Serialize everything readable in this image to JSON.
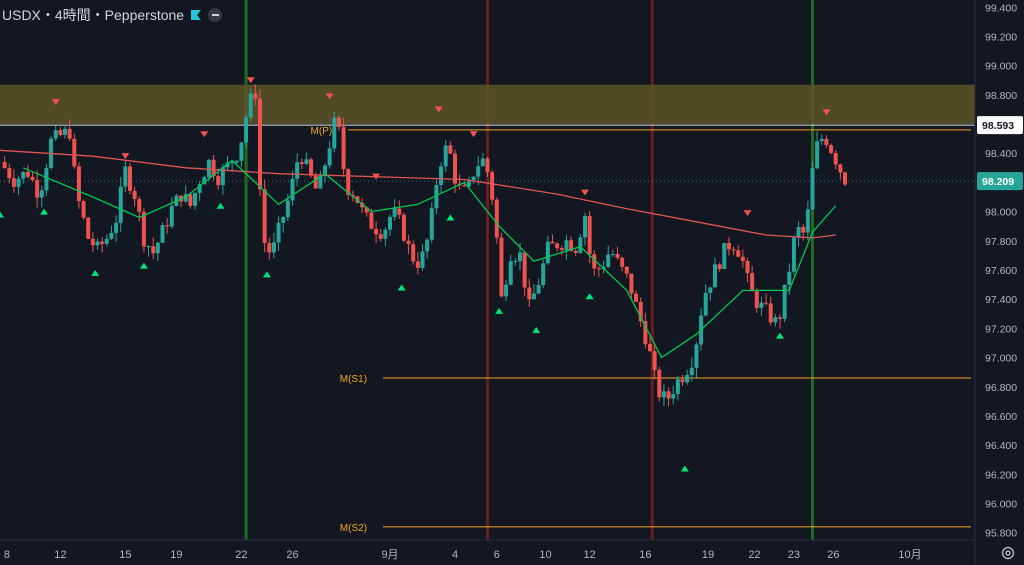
{
  "header": {
    "title": "USDX・4時間・Pepperstone",
    "flag_icon": "flag-icon",
    "collapse_icon": "minus-icon"
  },
  "colors": {
    "background": "#131722",
    "bull": "#26a69a",
    "bear": "#ef5350",
    "ma_slow": "#e05555",
    "ma_fast": "#00c853",
    "zone": "#5c5427",
    "pivot": "#f5a623",
    "green_vline": "#1f7a1f",
    "red_vline": "#7a1f1f",
    "axis_text": "#b2b5be",
    "current_price_bg": "#26a69a"
  },
  "chart_data": {
    "type": "candlestick",
    "symbol": "USDX",
    "timeframe": "4時間",
    "source": "Pepperstone",
    "ylim": [
      95.75,
      99.45
    ],
    "y_ticks": [
      95.8,
      96.0,
      96.2,
      96.4,
      96.6,
      96.8,
      97.0,
      97.2,
      97.4,
      97.6,
      97.8,
      98.0,
      98.2,
      98.4,
      98.6,
      98.8,
      99.0,
      99.2,
      99.4
    ],
    "y_tick_labels": [
      "95.800",
      "96.000",
      "96.200",
      "96.400",
      "96.600",
      "96.800",
      "97.000",
      "97.200",
      "97.400",
      "97.600",
      "97.800",
      "98.000",
      "98.200",
      "98.400",
      "98.600",
      "98.800",
      "99.000",
      "99.200",
      "99.400"
    ],
    "x_ticks": [
      {
        "label": "8",
        "t": 0.3
      },
      {
        "label": "12",
        "t": 2.6
      },
      {
        "label": "15",
        "t": 5.4
      },
      {
        "label": "19",
        "t": 7.6
      },
      {
        "label": "22",
        "t": 10.4
      },
      {
        "label": "26",
        "t": 12.6
      },
      {
        "label": "9月",
        "t": 16.8
      },
      {
        "label": "4",
        "t": 19.6
      },
      {
        "label": "6",
        "t": 21.4
      },
      {
        "label": "10",
        "t": 23.5
      },
      {
        "label": "12",
        "t": 25.4
      },
      {
        "label": "16",
        "t": 27.8
      },
      {
        "label": "19",
        "t": 30.5
      },
      {
        "label": "22",
        "t": 32.5
      },
      {
        "label": "23",
        "t": 34.2
      },
      {
        "label": "26",
        "t": 35.9
      },
      {
        "label": "10月",
        "t": 39.2
      }
    ],
    "x_range": [
      0,
      42
    ],
    "close_path": [
      [
        0.0,
        98.34
      ],
      [
        0.6,
        98.22
      ],
      [
        1.2,
        98.27
      ],
      [
        1.7,
        98.12
      ],
      [
        2.2,
        98.48
      ],
      [
        2.6,
        98.52
      ],
      [
        3.0,
        98.55
      ],
      [
        3.3,
        98.12
      ],
      [
        3.8,
        97.82
      ],
      [
        4.2,
        97.74
      ],
      [
        4.6,
        97.82
      ],
      [
        5.0,
        97.95
      ],
      [
        5.4,
        98.28
      ],
      [
        5.8,
        98.12
      ],
      [
        6.2,
        97.82
      ],
      [
        6.6,
        97.72
      ],
      [
        7.0,
        97.86
      ],
      [
        7.4,
        98.02
      ],
      [
        7.8,
        98.12
      ],
      [
        8.2,
        98.04
      ],
      [
        8.6,
        98.22
      ],
      [
        9.0,
        98.34
      ],
      [
        9.4,
        98.24
      ],
      [
        9.8,
        98.31
      ],
      [
        10.3,
        98.42
      ],
      [
        10.7,
        98.73
      ],
      [
        11.0,
        98.82
      ],
      [
        11.3,
        97.82
      ],
      [
        11.7,
        97.7
      ],
      [
        12.1,
        97.92
      ],
      [
        12.5,
        98.12
      ],
      [
        12.9,
        98.42
      ],
      [
        13.3,
        98.26
      ],
      [
        13.7,
        98.12
      ],
      [
        14.1,
        98.4
      ],
      [
        14.5,
        98.66
      ],
      [
        14.9,
        98.18
      ],
      [
        15.3,
        98.12
      ],
      [
        15.7,
        97.96
      ],
      [
        16.1,
        97.9
      ],
      [
        16.5,
        97.86
      ],
      [
        16.9,
        98.0
      ],
      [
        17.3,
        97.9
      ],
      [
        17.7,
        97.7
      ],
      [
        18.1,
        97.64
      ],
      [
        18.5,
        97.85
      ],
      [
        18.9,
        98.32
      ],
      [
        19.3,
        98.46
      ],
      [
        19.7,
        98.16
      ],
      [
        20.1,
        98.12
      ],
      [
        20.5,
        98.32
      ],
      [
        20.9,
        98.36
      ],
      [
        21.3,
        98.02
      ],
      [
        21.6,
        97.4
      ],
      [
        22.0,
        97.72
      ],
      [
        22.4,
        97.7
      ],
      [
        22.8,
        97.34
      ],
      [
        23.2,
        97.52
      ],
      [
        23.6,
        97.74
      ],
      [
        24.0,
        97.78
      ],
      [
        24.4,
        97.8
      ],
      [
        24.8,
        97.76
      ],
      [
        25.2,
        97.98
      ],
      [
        25.5,
        97.58
      ],
      [
        25.9,
        97.62
      ],
      [
        26.3,
        97.74
      ],
      [
        26.7,
        97.62
      ],
      [
        27.1,
        97.52
      ],
      [
        27.5,
        97.3
      ],
      [
        27.9,
        97.1
      ],
      [
        28.3,
        96.78
      ],
      [
        28.7,
        96.7
      ],
      [
        29.1,
        96.82
      ],
      [
        29.5,
        96.9
      ],
      [
        29.9,
        97.02
      ],
      [
        30.3,
        97.42
      ],
      [
        30.7,
        97.56
      ],
      [
        31.1,
        97.7
      ],
      [
        31.5,
        97.8
      ],
      [
        31.9,
        97.72
      ],
      [
        32.3,
        97.46
      ],
      [
        32.7,
        97.36
      ],
      [
        33.1,
        97.3
      ],
      [
        33.5,
        97.22
      ],
      [
        33.9,
        97.52
      ],
      [
        34.3,
        97.88
      ],
      [
        34.7,
        97.84
      ],
      [
        35.1,
        98.42
      ],
      [
        35.5,
        98.53
      ],
      [
        35.9,
        98.4
      ],
      [
        36.3,
        98.25
      ],
      [
        36.5,
        98.2
      ]
    ],
    "ma_slow": [
      [
        0,
        98.42
      ],
      [
        4,
        98.38
      ],
      [
        8,
        98.3
      ],
      [
        12,
        98.26
      ],
      [
        16,
        98.24
      ],
      [
        20,
        98.22
      ],
      [
        24,
        98.12
      ],
      [
        27,
        98.02
      ],
      [
        30,
        97.93
      ],
      [
        33,
        97.84
      ],
      [
        35,
        97.82
      ],
      [
        36,
        97.84
      ]
    ],
    "ma_fast": [
      [
        1,
        98.3
      ],
      [
        4,
        98.1
      ],
      [
        6,
        97.96
      ],
      [
        8,
        98.1
      ],
      [
        10,
        98.35
      ],
      [
        12,
        98.05
      ],
      [
        14,
        98.26
      ],
      [
        16,
        98.0
      ],
      [
        18,
        98.05
      ],
      [
        20,
        98.2
      ],
      [
        21.5,
        97.9
      ],
      [
        23,
        97.66
      ],
      [
        25,
        97.76
      ],
      [
        27,
        97.46
      ],
      [
        28.5,
        97.0
      ],
      [
        30,
        97.16
      ],
      [
        32,
        97.46
      ],
      [
        34,
        97.46
      ],
      [
        35,
        97.86
      ],
      [
        36,
        98.04
      ]
    ],
    "vertical_lines": [
      {
        "t": 10.6,
        "color": "green"
      },
      {
        "t": 21.0,
        "color": "red"
      },
      {
        "t": 28.1,
        "color": "red"
      },
      {
        "t": 35.0,
        "color": "green"
      }
    ],
    "resistance_zone": [
      98.6,
      98.87
    ],
    "pivot_levels": [
      {
        "label": "M(P)",
        "value": 98.56
      },
      {
        "label": "M(S1)",
        "value": 96.86
      },
      {
        "label": "M(S2)",
        "value": 95.84
      }
    ],
    "reference_price": {
      "value": 98.593,
      "label": "98.593"
    },
    "current_price": {
      "value": 98.209,
      "label": "98.209"
    },
    "sell_signals": [
      [
        2.4,
        98.75
      ],
      [
        10.8,
        98.9
      ],
      [
        14.2,
        98.79
      ],
      [
        8.8,
        98.53
      ],
      [
        5.4,
        98.38
      ],
      [
        16.2,
        98.24
      ],
      [
        18.9,
        98.7
      ],
      [
        20.4,
        98.53
      ],
      [
        25.2,
        98.13
      ],
      [
        32.2,
        97.99
      ],
      [
        35.6,
        98.68
      ]
    ],
    "buy_signals": [
      [
        0.0,
        97.98
      ],
      [
        1.9,
        98.0
      ],
      [
        4.1,
        97.58
      ],
      [
        6.2,
        97.63
      ],
      [
        9.5,
        98.04
      ],
      [
        11.5,
        97.57
      ],
      [
        17.3,
        97.48
      ],
      [
        19.4,
        97.96
      ],
      [
        21.5,
        97.32
      ],
      [
        23.1,
        97.19
      ],
      [
        25.4,
        97.42
      ],
      [
        29.5,
        96.24
      ],
      [
        33.6,
        97.15
      ]
    ]
  }
}
